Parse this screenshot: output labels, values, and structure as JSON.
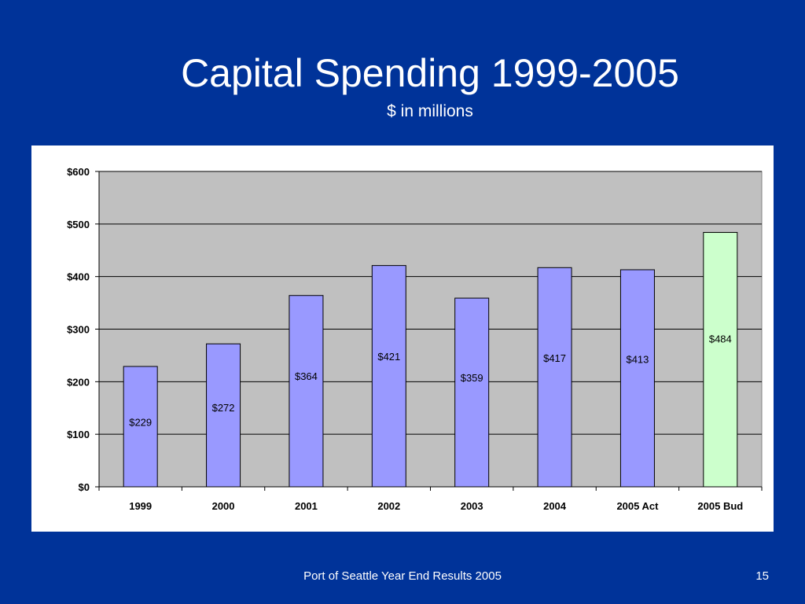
{
  "slide": {
    "title": "Capital Spending 1999-2005",
    "subtitle": "$ in millions",
    "footer": "Port of Seattle Year End Results 2005",
    "page_number": "15"
  },
  "colors": {
    "background": "#003399",
    "plot_area": "#c0c0c0",
    "bar_default": "#9999ff",
    "bar_budget": "#ccffcc",
    "gridline": "#000000"
  },
  "chart_data": {
    "type": "bar",
    "title": "",
    "xlabel": "",
    "ylabel": "",
    "categories": [
      "1999",
      "2000",
      "2001",
      "2002",
      "2003",
      "2004",
      "2005 Act",
      "2005 Bud"
    ],
    "values": [
      229,
      272,
      364,
      421,
      359,
      417,
      413,
      484
    ],
    "data_labels": [
      "$229",
      "$272",
      "$364",
      "$421",
      "$359",
      "$417",
      "$413",
      "$484"
    ],
    "ylim": [
      0,
      600
    ],
    "yticks": [
      0,
      100,
      200,
      300,
      400,
      500,
      600
    ],
    "ytick_labels": [
      "$0",
      "$100",
      "$200",
      "$300",
      "$400",
      "$500",
      "$600"
    ],
    "highlight_category": "2005 Bud",
    "grid": true,
    "legend": "none"
  }
}
